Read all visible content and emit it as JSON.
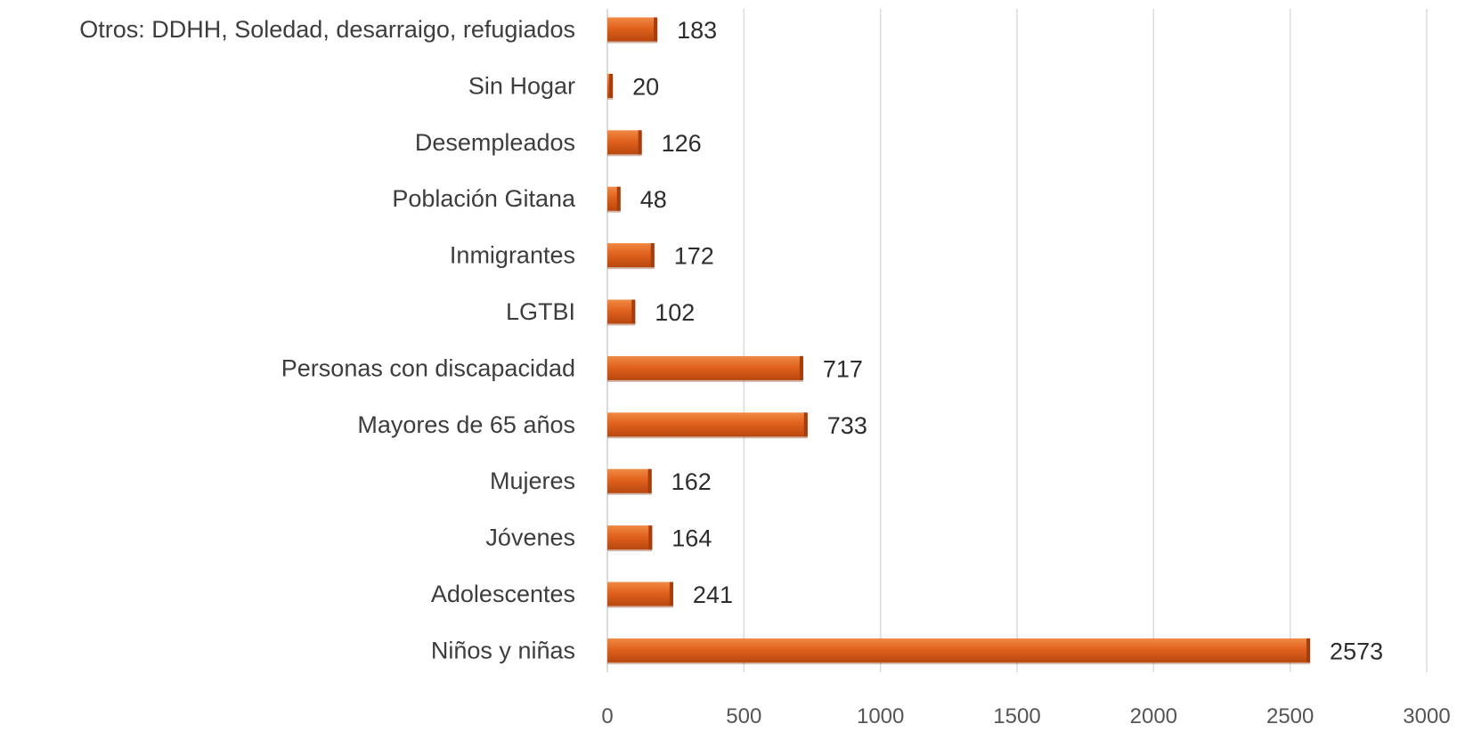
{
  "chart_data": {
    "type": "bar",
    "orientation": "horizontal",
    "categories": [
      "Otros: DDHH, Soledad, desarraigo, refugiados",
      "Sin Hogar",
      "Desempleados",
      "Población Gitana",
      "Inmigrantes",
      "LGTBI",
      "Personas con discapacidad",
      "Mayores de 65 años",
      "Mujeres",
      "Jóvenes",
      "Adolescentes",
      "Niños y niñas"
    ],
    "values": [
      183,
      20,
      126,
      48,
      172,
      102,
      717,
      733,
      162,
      164,
      241,
      2573
    ],
    "xticks": [
      "0",
      "500",
      "1000",
      "1500",
      "2000",
      "2500",
      "3000"
    ],
    "xlim": [
      0,
      3000
    ],
    "title": "",
    "xlabel": "",
    "ylabel": "",
    "grid": "vertical",
    "legend": "none",
    "data_labels": true,
    "colors": {
      "bar": "#e0621d",
      "bar_dark": "#a63d0c",
      "grid": "#dcdcdc"
    }
  }
}
